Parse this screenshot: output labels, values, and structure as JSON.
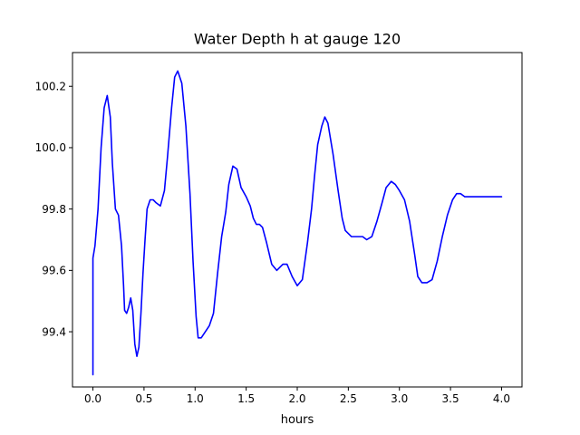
{
  "chart_data": {
    "type": "line",
    "title": "Water Depth h at gauge 120",
    "xlabel": "hours",
    "ylabel": "",
    "xlim": [
      -0.2,
      4.2
    ],
    "ylim": [
      99.22,
      100.31
    ],
    "xticks": [
      0.0,
      0.5,
      1.0,
      1.5,
      2.0,
      2.5,
      3.0,
      3.5,
      4.0
    ],
    "xtick_labels": [
      "0.0",
      "0.5",
      "1.0",
      "1.5",
      "2.0",
      "2.5",
      "3.0",
      "3.5",
      "4.0"
    ],
    "yticks": [
      99.4,
      99.6,
      99.8,
      100.0,
      100.2
    ],
    "ytick_labels": [
      "99.4",
      "99.6",
      "99.8",
      "100.0",
      "100.2"
    ],
    "grid": false,
    "line_color": "#0000ff",
    "series": [
      {
        "name": "",
        "x": [
          0.0,
          0.0,
          0.02,
          0.05,
          0.08,
          0.11,
          0.14,
          0.17,
          0.19,
          0.22,
          0.25,
          0.28,
          0.3,
          0.31,
          0.33,
          0.35,
          0.37,
          0.39,
          0.41,
          0.43,
          0.45,
          0.47,
          0.49,
          0.51,
          0.53,
          0.56,
          0.59,
          0.62,
          0.66,
          0.7,
          0.73,
          0.77,
          0.8,
          0.83,
          0.87,
          0.91,
          0.95,
          0.98,
          1.01,
          1.03,
          1.06,
          1.1,
          1.14,
          1.18,
          1.22,
          1.26,
          1.28,
          1.3,
          1.33,
          1.37,
          1.41,
          1.45,
          1.5,
          1.54,
          1.57,
          1.6,
          1.63,
          1.66,
          1.7,
          1.75,
          1.8,
          1.86,
          1.9,
          1.95,
          2.0,
          2.05,
          2.1,
          2.14,
          2.17,
          2.2,
          2.24,
          2.27,
          2.3,
          2.35,
          2.4,
          2.44,
          2.47,
          2.5,
          2.53,
          2.56,
          2.6,
          2.64,
          2.68,
          2.73,
          2.78,
          2.83,
          2.87,
          2.92,
          2.96,
          3.0,
          3.05,
          3.1,
          3.15,
          3.18,
          3.22,
          3.27,
          3.32,
          3.37,
          3.42,
          3.47,
          3.52,
          3.56,
          3.6,
          3.64,
          3.68,
          3.72,
          3.77,
          3.82,
          3.86,
          3.9,
          3.93,
          3.96,
          4.0
        ],
        "y": [
          99.26,
          99.64,
          99.68,
          99.8,
          100.0,
          100.13,
          100.17,
          100.1,
          99.95,
          99.8,
          99.78,
          99.68,
          99.55,
          99.47,
          99.46,
          99.48,
          99.51,
          99.47,
          99.36,
          99.32,
          99.35,
          99.46,
          99.59,
          99.7,
          99.8,
          99.83,
          99.83,
          99.82,
          99.81,
          99.86,
          99.97,
          100.13,
          100.23,
          100.25,
          100.21,
          100.07,
          99.85,
          99.63,
          99.45,
          99.38,
          99.38,
          99.4,
          99.42,
          99.46,
          99.59,
          99.71,
          99.75,
          99.79,
          99.88,
          99.94,
          99.93,
          99.87,
          99.84,
          99.81,
          99.77,
          99.75,
          99.75,
          99.74,
          99.69,
          99.62,
          99.6,
          99.62,
          99.62,
          99.58,
          99.55,
          99.57,
          99.69,
          99.8,
          99.91,
          100.01,
          100.07,
          100.1,
          100.08,
          99.98,
          99.86,
          99.77,
          99.73,
          99.72,
          99.71,
          99.71,
          99.71,
          99.71,
          99.7,
          99.71,
          99.76,
          99.82,
          99.87,
          99.89,
          99.88,
          99.86,
          99.83,
          99.76,
          99.65,
          99.58,
          99.56,
          99.56,
          99.57,
          99.63,
          99.71,
          99.78,
          99.83,
          99.85,
          99.85,
          99.84,
          99.84,
          99.84,
          99.84,
          99.84,
          99.84,
          99.84,
          99.84,
          99.84,
          99.84
        ]
      }
    ]
  }
}
